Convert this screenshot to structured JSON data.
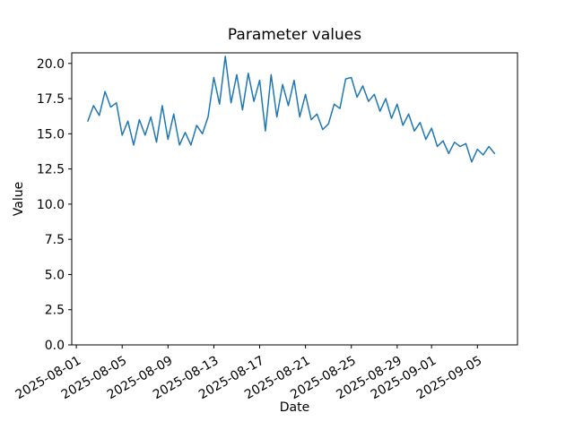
{
  "figure": {
    "title": "Parameter values",
    "xlabel": "Date",
    "ylabel": "Value"
  },
  "chart_data": {
    "type": "line",
    "title": "Parameter values",
    "xlabel": "Date",
    "ylabel": "Value",
    "line_color": "#1f77b4",
    "axis_color": "#000000",
    "background_color": "#ffffff",
    "grid": false,
    "legend": null,
    "x_epoch_date": "2025-08-01",
    "x_start_day_offset": 1.0,
    "x_step_days": 0.5,
    "xlim_day_offsets": [
      -0.4,
      38.5
    ],
    "ylim": [
      0.0,
      20.75
    ],
    "y_ticks": [
      0.0,
      2.5,
      5.0,
      7.5,
      10.0,
      12.5,
      15.0,
      17.5,
      20.0
    ],
    "x_ticks": [
      {
        "label": "2025-08-01",
        "day_offset": 0
      },
      {
        "label": "2025-08-05",
        "day_offset": 4
      },
      {
        "label": "2025-08-09",
        "day_offset": 8
      },
      {
        "label": "2025-08-13",
        "day_offset": 12
      },
      {
        "label": "2025-08-17",
        "day_offset": 16
      },
      {
        "label": "2025-08-21",
        "day_offset": 20
      },
      {
        "label": "2025-08-25",
        "day_offset": 24
      },
      {
        "label": "2025-08-29",
        "day_offset": 28
      },
      {
        "label": "2025-09-01",
        "day_offset": 31
      },
      {
        "label": "2025-09-05",
        "day_offset": 35
      }
    ],
    "x_tick_rotation_deg": 30,
    "values": [
      15.9,
      17.0,
      16.3,
      18.0,
      16.9,
      17.2,
      14.9,
      15.9,
      14.2,
      16.0,
      14.9,
      16.2,
      14.4,
      17.0,
      14.6,
      16.4,
      14.2,
      15.1,
      14.2,
      15.6,
      15.0,
      16.2,
      19.0,
      17.1,
      20.5,
      17.2,
      19.2,
      16.7,
      19.3,
      17.3,
      18.8,
      15.2,
      19.2,
      16.2,
      18.5,
      17.0,
      18.8,
      16.2,
      17.8,
      16.0,
      16.4,
      15.3,
      15.7,
      17.1,
      16.8,
      18.9,
      19.0,
      17.6,
      18.4,
      17.3,
      17.8,
      16.6,
      17.5,
      16.1,
      17.1,
      15.6,
      16.4,
      15.2,
      15.8,
      14.6,
      15.4,
      14.1,
      14.5,
      13.6,
      14.4,
      14.1,
      14.3,
      13.0,
      13.9,
      13.5,
      14.1,
      13.6
    ]
  }
}
